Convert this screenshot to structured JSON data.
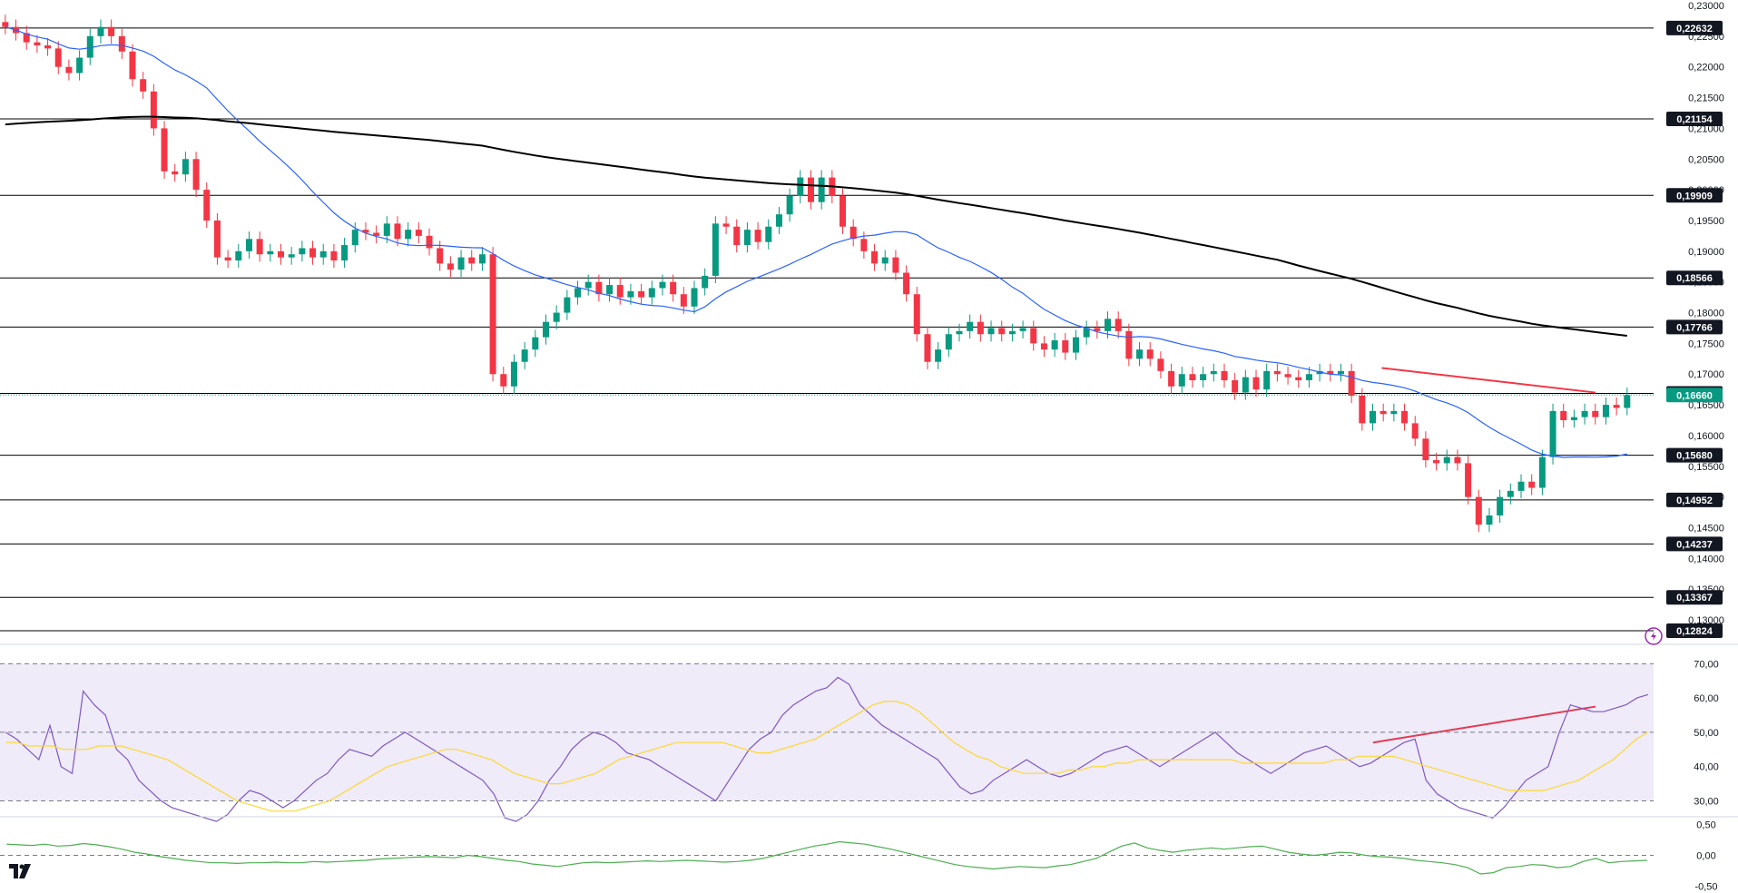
{
  "chart_data": [
    {
      "type": "candlestick",
      "panel": "price",
      "y_axis_ticks": [
        "0,23000",
        "0,22500",
        "0,22000",
        "0,21500",
        "0,21000",
        "0,20500",
        "0,20000",
        "0,19500",
        "0,19000",
        "0,18500",
        "0,18000",
        "0,17500",
        "0,17000",
        "0,16500",
        "0,16000",
        "0,15500",
        "0,15000",
        "0,14500",
        "0,14000",
        "0,13500",
        "0,13000"
      ],
      "ylim": [
        0.1275,
        0.23
      ],
      "horizontal_levels": [
        {
          "value": 0.22632,
          "label": "0,22632"
        },
        {
          "value": 0.21154,
          "label": "0,21154"
        },
        {
          "value": 0.19909,
          "label": "0,19909"
        },
        {
          "value": 0.18566,
          "label": "0,18566"
        },
        {
          "value": 0.17766,
          "label": "0,17766"
        },
        {
          "value": 0.16686,
          "label": "0,16686"
        },
        {
          "value": 0.1568,
          "label": "0,15680"
        },
        {
          "value": 0.14952,
          "label": "0,14952"
        },
        {
          "value": 0.14237,
          "label": "0,14237"
        },
        {
          "value": 0.13367,
          "label": "0,13367"
        },
        {
          "value": 0.12824,
          "label": "0,12824"
        }
      ],
      "current_price": {
        "value": 0.1666,
        "label": "0,16660"
      },
      "candles_close": [
        0.2265,
        0.2255,
        0.224,
        0.2235,
        0.223,
        0.22,
        0.219,
        0.2215,
        0.225,
        0.2265,
        0.225,
        0.2225,
        0.218,
        0.216,
        0.21,
        0.203,
        0.2025,
        0.205,
        0.2,
        0.195,
        0.189,
        0.1885,
        0.19,
        0.192,
        0.1895,
        0.19,
        0.189,
        0.1895,
        0.1905,
        0.189,
        0.19,
        0.1885,
        0.191,
        0.1935,
        0.193,
        0.1925,
        0.1945,
        0.192,
        0.1935,
        0.1925,
        0.1905,
        0.188,
        0.187,
        0.189,
        0.188,
        0.1895,
        0.17,
        0.168,
        0.172,
        0.174,
        0.176,
        0.1785,
        0.18,
        0.1825,
        0.184,
        0.185,
        0.183,
        0.1845,
        0.1825,
        0.1835,
        0.1825,
        0.184,
        0.185,
        0.183,
        0.181,
        0.184,
        0.186,
        0.1945,
        0.194,
        0.191,
        0.1935,
        0.1915,
        0.194,
        0.196,
        0.199,
        0.202,
        0.198,
        0.202,
        0.199,
        0.194,
        0.192,
        0.19,
        0.188,
        0.189,
        0.1865,
        0.183,
        0.1765,
        0.172,
        0.174,
        0.1765,
        0.177,
        0.1785,
        0.1765,
        0.1775,
        0.1765,
        0.177,
        0.1775,
        0.175,
        0.174,
        0.1755,
        0.1735,
        0.176,
        0.1775,
        0.177,
        0.179,
        0.177,
        0.1725,
        0.174,
        0.1725,
        0.1705,
        0.168,
        0.17,
        0.169,
        0.17,
        0.1705,
        0.169,
        0.167,
        0.1695,
        0.1675,
        0.1705,
        0.17,
        0.1695,
        0.169,
        0.17,
        0.1705,
        0.17,
        0.1705,
        0.1665,
        0.162,
        0.164,
        0.1635,
        0.164,
        0.162,
        0.1595,
        0.156,
        0.1555,
        0.1565,
        0.1555,
        0.15,
        0.1455,
        0.147,
        0.15,
        0.151,
        0.1525,
        0.1515,
        0.1565,
        0.164,
        0.1625,
        0.163,
        0.164,
        0.163,
        0.165,
        0.1645,
        0.1666
      ]
    },
    {
      "type": "line",
      "panel": "rsi",
      "y_axis_ticks": [
        "70,00",
        "60,00",
        "50,00",
        "40,00",
        "30,00"
      ],
      "ylim": [
        28,
        73
      ],
      "guide_levels": [
        70,
        50,
        30
      ],
      "series": [
        {
          "values": [
            50,
            48,
            45,
            42,
            52,
            40,
            38,
            62,
            58,
            55,
            45,
            42,
            36,
            33,
            30,
            28,
            27,
            26,
            25,
            24,
            26,
            30,
            33,
            32,
            30,
            28,
            30,
            33,
            36,
            38,
            42,
            45,
            44,
            43,
            46,
            48,
            50,
            48,
            46,
            44,
            42,
            40,
            38,
            36,
            32,
            25,
            24,
            26,
            30,
            36,
            40,
            45,
            48,
            50,
            49,
            47,
            44,
            43,
            42,
            40,
            38,
            36,
            34,
            32,
            30,
            35,
            40,
            45,
            48,
            50,
            55,
            58,
            60,
            62,
            63,
            66,
            64,
            58,
            55,
            52,
            50,
            48,
            46,
            44,
            42,
            38,
            34,
            32,
            33,
            36,
            38,
            40,
            42,
            40,
            38,
            37,
            38,
            40,
            42,
            44,
            45,
            46,
            44,
            42,
            40,
            42,
            44,
            46,
            48,
            50,
            47,
            44,
            42,
            40,
            38,
            40,
            42,
            44,
            45,
            46,
            44,
            42,
            40,
            41,
            43,
            45,
            47,
            48,
            36,
            32,
            30,
            28,
            27,
            26,
            25,
            28,
            32,
            36,
            38,
            40,
            50,
            58,
            57,
            56,
            56,
            57,
            58,
            60,
            61
          ]
        },
        {
          "values": [
            47,
            47,
            46,
            46,
            46,
            45,
            45,
            45,
            46,
            46,
            46,
            45,
            44,
            43,
            42,
            40,
            38,
            36,
            34,
            32,
            30,
            29,
            28,
            27,
            27,
            27,
            28,
            29,
            30,
            32,
            34,
            36,
            38,
            40,
            41,
            42,
            43,
            44,
            45,
            45,
            44,
            43,
            42,
            40,
            38,
            37,
            36,
            35,
            35,
            36,
            37,
            38,
            40,
            42,
            43,
            44,
            45,
            46,
            47,
            47,
            47,
            47,
            47,
            46,
            45,
            44,
            44,
            45,
            46,
            47,
            48,
            50,
            52,
            54,
            56,
            58,
            59,
            59,
            58,
            56,
            53,
            50,
            47,
            45,
            43,
            42,
            40,
            39,
            38,
            38,
            38,
            38,
            39,
            39,
            40,
            40,
            41,
            41,
            42,
            42,
            42,
            42,
            42,
            42,
            42,
            42,
            42,
            41,
            41,
            41,
            41,
            41,
            41,
            41,
            41,
            42,
            42,
            43,
            43,
            43,
            43,
            42,
            41,
            40,
            39,
            38,
            37,
            36,
            35,
            34,
            33,
            33,
            33,
            33,
            34,
            35,
            36,
            38,
            40,
            42,
            45,
            48,
            50
          ]
        }
      ]
    },
    {
      "type": "line",
      "panel": "oscillator",
      "y_axis_ticks": [
        "0,50",
        "0,00",
        "-0,50"
      ],
      "ylim": [
        -0.55,
        0.55
      ],
      "guide_levels": [
        0
      ],
      "series": [
        {
          "values": [
            0.18,
            0.17,
            0.16,
            0.18,
            0.15,
            0.16,
            0.19,
            0.17,
            0.14,
            0.1,
            0.05,
            0.02,
            -0.02,
            -0.05,
            -0.08,
            -0.1,
            -0.12,
            -0.12,
            -0.13,
            -0.12,
            -0.12,
            -0.11,
            -0.12,
            -0.12,
            -0.1,
            -0.11,
            -0.1,
            -0.09,
            -0.08,
            -0.06,
            -0.05,
            -0.04,
            -0.03,
            -0.02,
            -0.03,
            -0.04,
            0.0,
            -0.02,
            -0.05,
            -0.08,
            -0.1,
            -0.14,
            -0.16,
            -0.18,
            -0.15,
            -0.12,
            -0.11,
            -0.12,
            -0.11,
            -0.1,
            -0.09,
            -0.1,
            -0.09,
            -0.08,
            -0.09,
            -0.1,
            -0.11,
            -0.1,
            -0.08,
            -0.05,
            0.0,
            0.05,
            0.1,
            0.15,
            0.18,
            0.22,
            0.2,
            0.18,
            0.14,
            0.1,
            0.05,
            0.0,
            -0.05,
            -0.1,
            -0.15,
            -0.18,
            -0.2,
            -0.22,
            -0.2,
            -0.18,
            -0.19,
            -0.2,
            -0.17,
            -0.15,
            -0.1,
            -0.05,
            0.05,
            0.15,
            0.2,
            0.12,
            0.08,
            0.05,
            0.08,
            0.1,
            0.12,
            0.1,
            0.12,
            0.14,
            0.15,
            0.1,
            0.05,
            0.02,
            0.0,
            0.02,
            0.05,
            0.04,
            0.0,
            -0.02,
            -0.03,
            -0.05,
            -0.08,
            -0.1,
            -0.12,
            -0.15,
            -0.2,
            -0.3,
            -0.28,
            -0.2,
            -0.18,
            -0.15,
            -0.16,
            -0.2,
            -0.18,
            -0.1,
            -0.05,
            -0.12,
            -0.1,
            -0.09,
            -0.08
          ]
        }
      ]
    }
  ],
  "drawn_lines": [
    {
      "panel": "price",
      "color": "#f23645",
      "from": {
        "x": 0.795,
        "value": 0.171
      },
      "to": {
        "x": 0.918,
        "value": 0.167
      }
    },
    {
      "panel": "rsi",
      "color": "#f23645",
      "from": {
        "x": 0.79,
        "value": 47
      },
      "to": {
        "x": 0.918,
        "value": 57.5
      }
    }
  ],
  "colors": {
    "up_candle": "#089981",
    "down_candle": "#f23645",
    "ma_fast": "#2962ff",
    "ma_slow": "#000000",
    "rsi_line": "#7e57c2",
    "rsi_signal": "#fdd835",
    "oscillator": "#4caf50",
    "current_price_bg": "#089981",
    "level_line": "#000000"
  },
  "icons": {
    "logo": "tradingview-logo-icon",
    "alert": "lightning-icon"
  }
}
